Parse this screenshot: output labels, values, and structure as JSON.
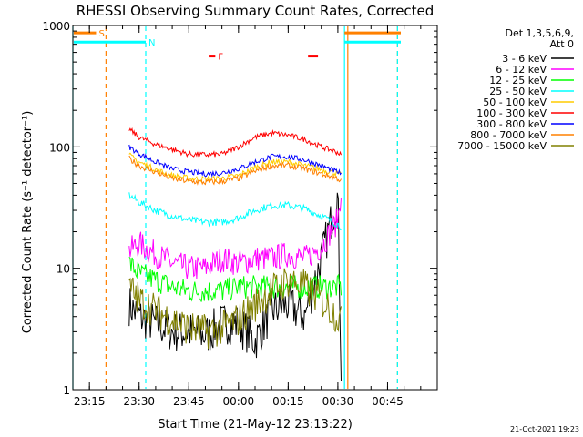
{
  "chart_data": {
    "type": "line",
    "title": "RHESSI Observing Summary Count Rates, Corrected",
    "xlabel": "Start Time (21-May-12 23:13:22)",
    "ylabel": "Corrected Count Rate (s⁻¹ detector⁻¹)",
    "y_scale": "log",
    "ylim": [
      1,
      1000
    ],
    "xlim": [
      "23:10",
      "01:00"
    ],
    "y_ticks": [
      "1",
      "10",
      "100",
      "1000"
    ],
    "x_ticks": [
      "23:15",
      "23:30",
      "23:45",
      "00:00",
      "00:15",
      "00:30",
      "00:45"
    ],
    "legend_title": "Det 1,3,5,6,9,",
    "legend_subtitle": "Att 0",
    "legend_position": "right",
    "timestamp": "21-Oct-2021 19:23",
    "data_gap": {
      "start": "23:17",
      "end": "23:27",
      "resume": "00:32"
    },
    "flag_bars": [
      {
        "label": "S",
        "color": "#ff8000",
        "start": "23:10",
        "end": "23:17",
        "level": 870
      },
      {
        "label": "N",
        "color": "#00ffff",
        "start": "23:10",
        "end": "23:32",
        "level": 730
      },
      {
        "label": "F",
        "color": "#ff0000",
        "start": "23:51",
        "end": "23:53",
        "level": 560
      },
      {
        "label": "",
        "color": "#ff0000",
        "start": "00:21",
        "end": "00:24",
        "level": 560
      },
      {
        "label": "",
        "color": "#ff8000",
        "start": "00:32",
        "end": "00:49",
        "level": 870
      },
      {
        "label": "",
        "color": "#00ffff",
        "start": "00:32",
        "end": "00:49",
        "level": 730
      }
    ],
    "vlines": [
      {
        "time": "23:10",
        "color": "#00ffff",
        "style": "solid"
      },
      {
        "time": "23:20",
        "color": "#ff8000",
        "style": "dashed"
      },
      {
        "time": "23:32",
        "color": "#00ffff",
        "style": "dashed"
      },
      {
        "time": "00:32",
        "color": "#00ffff",
        "style": "solid"
      },
      {
        "time": "00:33",
        "color": "#ff8000",
        "style": "solid"
      },
      {
        "time": "00:48",
        "color": "#ff8000",
        "style": "dashed"
      },
      {
        "time": "00:48",
        "color": "#00ffff",
        "style": "dashed"
      }
    ],
    "x": [
      "23:27",
      "23:30",
      "23:35",
      "23:40",
      "23:45",
      "23:50",
      "23:55",
      "00:00",
      "00:05",
      "00:10",
      "00:15",
      "00:20",
      "00:25",
      "00:30",
      "00:31"
    ],
    "series": [
      {
        "name": "3 - 6 keV",
        "color": "#000000",
        "values": [
          5,
          4,
          3.5,
          3,
          3,
          2.8,
          3.5,
          3.5,
          2.5,
          4.5,
          5,
          4,
          12,
          40,
          1.5
        ]
      },
      {
        "name": "6 - 12 keV",
        "color": "#ff00ff",
        "values": [
          14,
          16,
          13,
          11,
          10,
          10,
          12,
          11,
          12,
          12,
          13,
          12,
          15,
          25,
          45
        ]
      },
      {
        "name": "12 - 25 keV",
        "color": "#00ff00",
        "values": [
          11,
          9,
          8,
          7,
          6.5,
          6.5,
          6.5,
          7,
          7,
          7,
          7,
          7,
          7,
          7,
          7
        ]
      },
      {
        "name": "25 - 50 keV",
        "color": "#00ffff",
        "values": [
          40,
          35,
          30,
          27,
          25,
          24,
          24,
          26,
          30,
          33,
          33,
          31,
          27,
          23,
          22
        ]
      },
      {
        "name": "50 - 100 keV",
        "color": "#ffcc00",
        "values": [
          85,
          75,
          65,
          58,
          55,
          54,
          55,
          58,
          68,
          75,
          75,
          70,
          65,
          60,
          58
        ]
      },
      {
        "name": "100 - 300 keV",
        "color": "#ff0000",
        "values": [
          140,
          120,
          105,
          95,
          87,
          86,
          87,
          100,
          120,
          130,
          125,
          115,
          100,
          90,
          85
        ]
      },
      {
        "name": "300 - 800 keV",
        "color": "#0000ff",
        "values": [
          100,
          88,
          75,
          66,
          62,
          60,
          61,
          66,
          75,
          83,
          83,
          78,
          70,
          62,
          60
        ]
      },
      {
        "name": "800 - 7000 keV",
        "color": "#ff8000",
        "values": [
          80,
          70,
          62,
          55,
          52,
          51,
          52,
          55,
          63,
          70,
          70,
          66,
          60,
          55,
          52
        ]
      },
      {
        "name": "7000 - 15000 keV",
        "color": "#808000",
        "values": [
          7,
          5.5,
          4.5,
          3.8,
          3.2,
          3,
          3.2,
          3.8,
          5,
          6.5,
          8,
          7,
          5.5,
          4,
          3.5
        ]
      }
    ]
  }
}
